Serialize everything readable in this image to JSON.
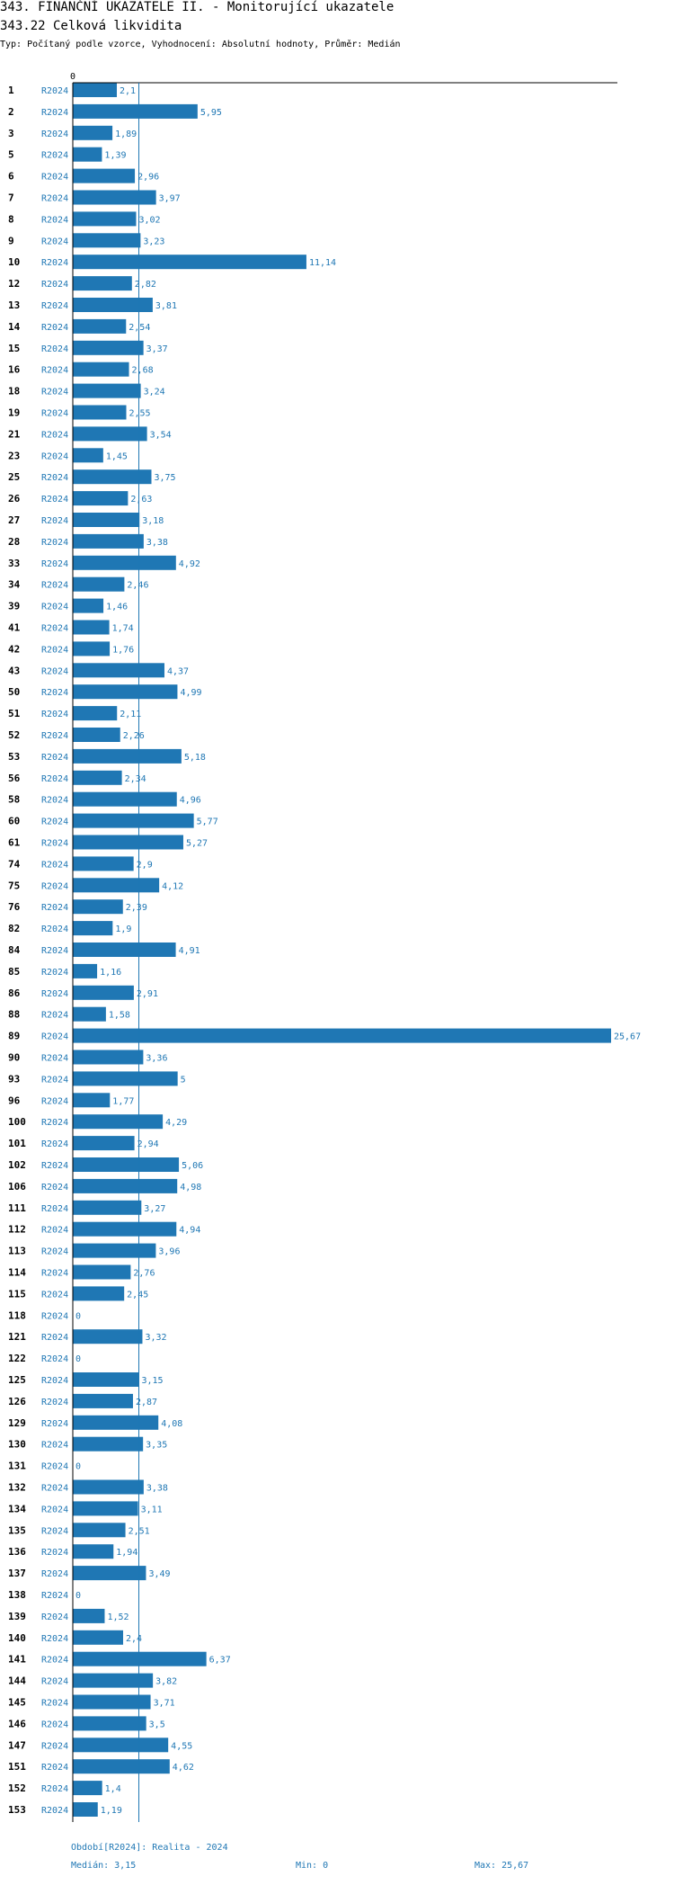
{
  "header": {
    "title": "343. FINANČNÍ UKAZATELE II. - Monitorující ukazatele",
    "subtitle": "343.22 Celková likvidita",
    "meta": "Typ: Počítaný podle vzorce, Vyhodnocení: Absolutní hodnoty, Průměr: Medián"
  },
  "colors": {
    "bar": "#1f77b4",
    "text": "#1f77b4",
    "row_label": "#000000",
    "axis": "#000000"
  },
  "chart_data": {
    "type": "bar",
    "orientation": "horizontal",
    "axis_zero_label": "0",
    "series_label": "R2024",
    "categories": [
      "1",
      "2",
      "3",
      "5",
      "6",
      "7",
      "8",
      "9",
      "10",
      "12",
      "13",
      "14",
      "15",
      "16",
      "18",
      "19",
      "21",
      "23",
      "25",
      "26",
      "27",
      "28",
      "33",
      "34",
      "39",
      "41",
      "42",
      "43",
      "50",
      "51",
      "52",
      "53",
      "56",
      "58",
      "60",
      "61",
      "74",
      "75",
      "76",
      "82",
      "84",
      "85",
      "86",
      "88",
      "89",
      "90",
      "93",
      "96",
      "100",
      "101",
      "102",
      "106",
      "111",
      "112",
      "113",
      "114",
      "115",
      "118",
      "121",
      "122",
      "125",
      "126",
      "129",
      "130",
      "131",
      "132",
      "134",
      "135",
      "136",
      "137",
      "138",
      "139",
      "140",
      "141",
      "144",
      "145",
      "146",
      "147",
      "151",
      "152",
      "153"
    ],
    "values": [
      2.1,
      5.95,
      1.89,
      1.39,
      2.96,
      3.97,
      3.02,
      3.23,
      11.14,
      2.82,
      3.81,
      2.54,
      3.37,
      2.68,
      3.24,
      2.55,
      3.54,
      1.45,
      3.75,
      2.63,
      3.18,
      3.38,
      4.92,
      2.46,
      1.46,
      1.74,
      1.76,
      4.37,
      4.99,
      2.11,
      2.26,
      5.18,
      2.34,
      4.96,
      5.77,
      5.27,
      2.9,
      4.12,
      2.39,
      1.9,
      4.91,
      1.16,
      2.91,
      1.58,
      25.67,
      3.36,
      5,
      1.77,
      4.29,
      2.94,
      5.06,
      4.98,
      3.27,
      4.94,
      3.96,
      2.76,
      2.45,
      0,
      3.32,
      0,
      3.15,
      2.87,
      4.08,
      3.35,
      0,
      3.38,
      3.11,
      2.51,
      1.94,
      3.49,
      0,
      1.52,
      2.4,
      6.37,
      3.82,
      3.71,
      3.5,
      4.55,
      4.62,
      1.4,
      1.19
    ],
    "value_labels": [
      "2,1",
      "5,95",
      "1,89",
      "1,39",
      "2,96",
      "3,97",
      "3,02",
      "3,23",
      "11,14",
      "2,82",
      "3,81",
      "2,54",
      "3,37",
      "2,68",
      "3,24",
      "2,55",
      "3,54",
      "1,45",
      "3,75",
      "2,63",
      "3,18",
      "3,38",
      "4,92",
      "2,46",
      "1,46",
      "1,74",
      "1,76",
      "4,37",
      "4,99",
      "2,11",
      "2,26",
      "5,18",
      "2,34",
      "4,96",
      "5,77",
      "5,27",
      "2,9",
      "4,12",
      "2,39",
      "1,9",
      "4,91",
      "1,16",
      "2,91",
      "1,58",
      "25,67",
      "3,36",
      "5",
      "1,77",
      "4,29",
      "2,94",
      "5,06",
      "4,98",
      "3,27",
      "4,94",
      "3,96",
      "2,76",
      "2,45",
      "0",
      "3,32",
      "0",
      "3,15",
      "2,87",
      "4,08",
      "3,35",
      "0",
      "3,38",
      "3,11",
      "2,51",
      "1,94",
      "3,49",
      "0",
      "1,52",
      "2,4",
      "6,37",
      "3,82",
      "3,71",
      "3,5",
      "4,55",
      "4,62",
      "1,4",
      "1,19"
    ],
    "median": 3.15,
    "xlim": [
      0,
      25.67
    ]
  },
  "footer": {
    "period": "Období[R2024]: Realita - 2024",
    "median": "Medián: 3,15",
    "min": "Min: 0",
    "max": "Max: 25,67"
  }
}
